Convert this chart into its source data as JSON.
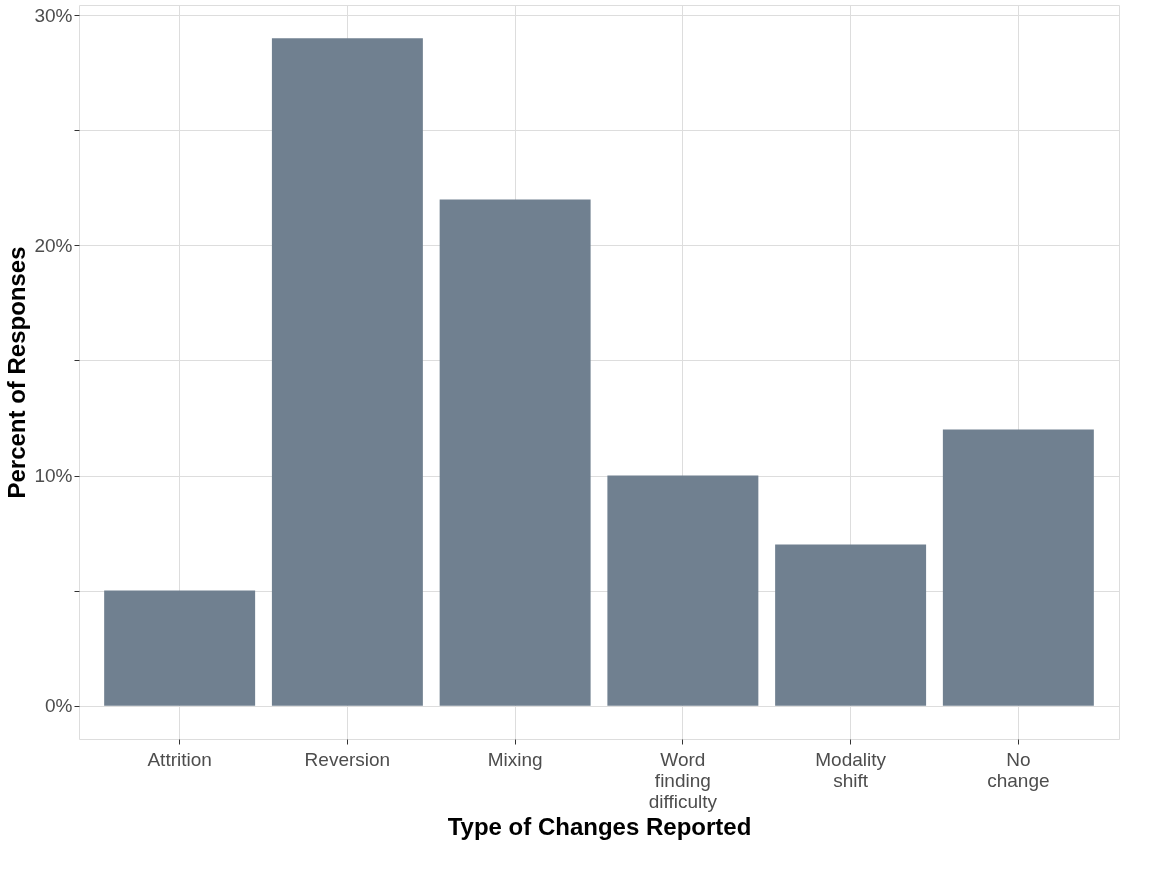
{
  "chart_data": {
    "type": "bar",
    "xlabel": "Type of Changes Reported",
    "ylabel": "Percent of Responses",
    "categories": [
      "Attrition",
      "Reversion",
      "Mixing",
      "Word finding difficulty",
      "Modality shift",
      "No change"
    ],
    "values": [
      5,
      29,
      22,
      10,
      7,
      12
    ],
    "color": "#708090",
    "ylim": [
      -1.45,
      30.45
    ],
    "yticks": [
      {
        "value": 0,
        "label": "0%"
      },
      {
        "value": 5,
        "label": null
      },
      {
        "value": 10,
        "label": "10%"
      },
      {
        "value": 15,
        "label": null
      },
      {
        "value": 20,
        "label": "20%"
      },
      {
        "value": 25,
        "label": null
      },
      {
        "value": 30,
        "label": "30%"
      }
    ],
    "grid": true
  }
}
